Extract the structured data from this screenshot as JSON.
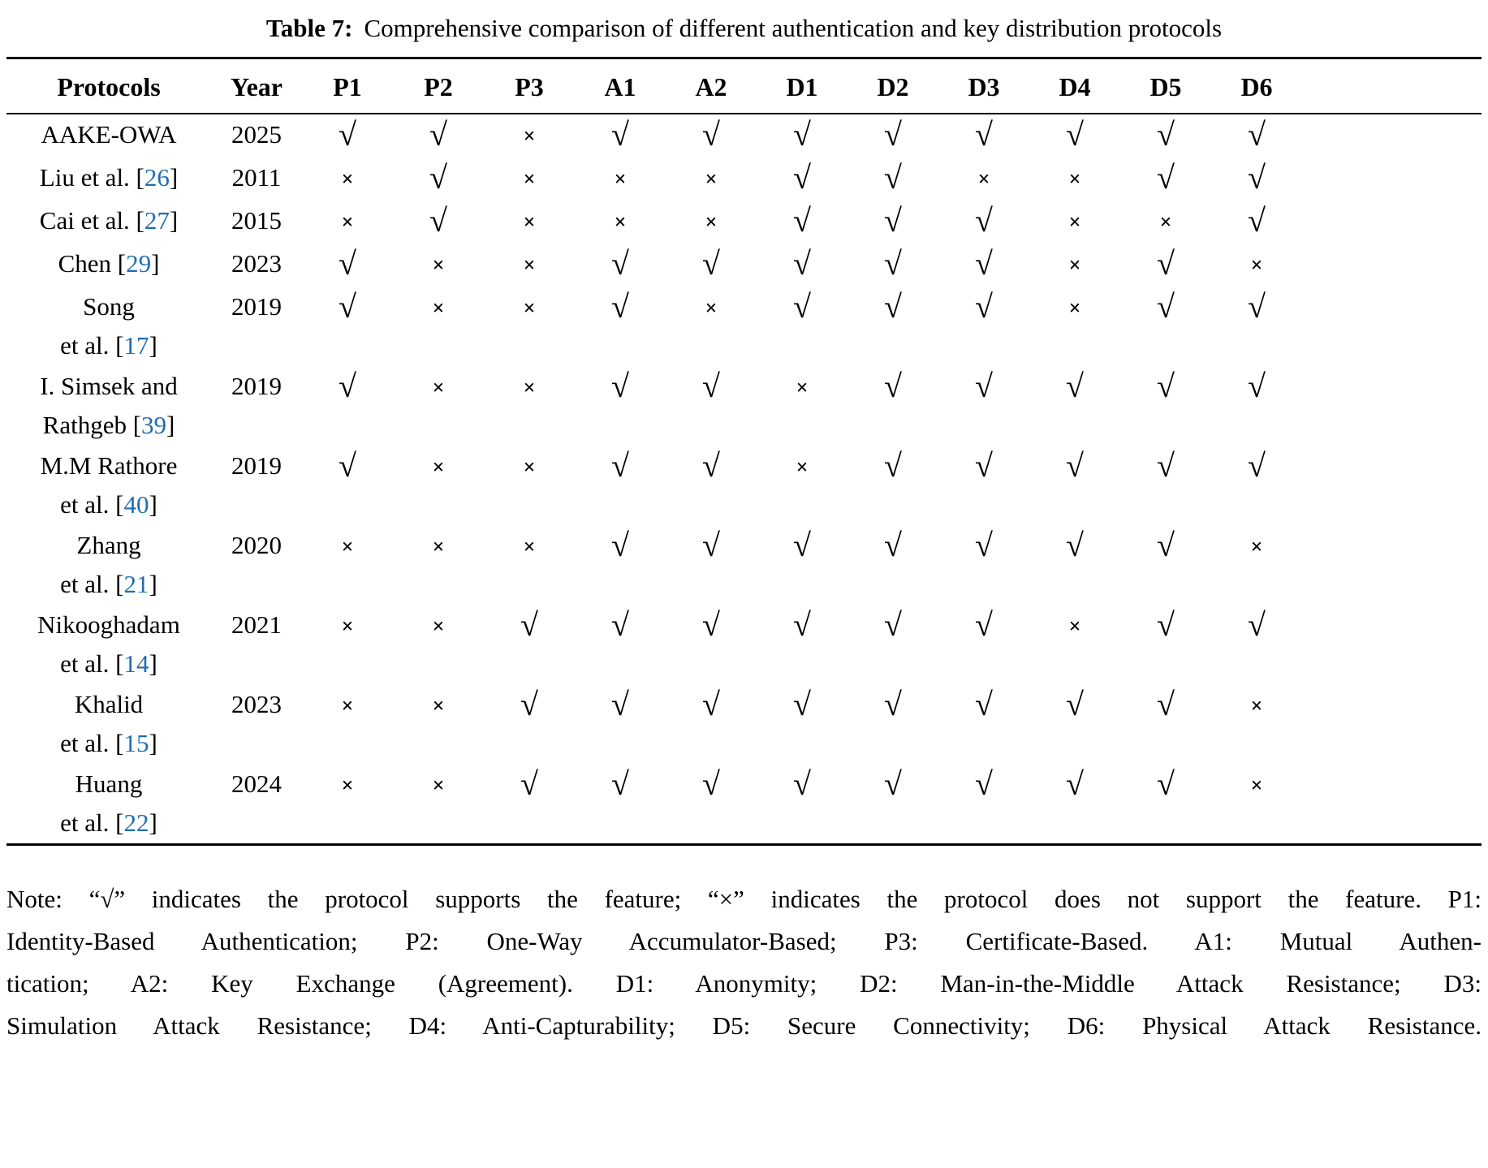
{
  "colors": {
    "background": "#ffffff",
    "text": "#000000",
    "rule": "#000000",
    "citation": "#1f6cb0"
  },
  "caption": {
    "label": "Table 7:",
    "text": "Comprehensive comparison of different authentication and key distribution protocols"
  },
  "table": {
    "columns": [
      "Protocols",
      "Year",
      "P1",
      "P2",
      "P3",
      "A1",
      "A2",
      "D1",
      "D2",
      "D3",
      "D4",
      "D5",
      "D6"
    ],
    "check_symbol": "√",
    "cross_symbol": "×",
    "rows": [
      {
        "protocol_lines": [
          [
            {
              "text": "AAKE-OWA",
              "cite": false
            }
          ]
        ],
        "year": "2025",
        "marks": [
          "check",
          "check",
          "cross",
          "check",
          "check",
          "check",
          "check",
          "check",
          "check",
          "check",
          "check"
        ]
      },
      {
        "protocol_lines": [
          [
            {
              "text": "Liu et al. [",
              "cite": false
            },
            {
              "text": "26",
              "cite": true
            },
            {
              "text": "]",
              "cite": false
            }
          ]
        ],
        "year": "2011",
        "marks": [
          "cross",
          "check",
          "cross",
          "cross",
          "cross",
          "check",
          "check",
          "cross",
          "cross",
          "check",
          "check"
        ]
      },
      {
        "protocol_lines": [
          [
            {
              "text": "Cai et al. [",
              "cite": false
            },
            {
              "text": "27",
              "cite": true
            },
            {
              "text": "]",
              "cite": false
            }
          ]
        ],
        "year": "2015",
        "marks": [
          "cross",
          "check",
          "cross",
          "cross",
          "cross",
          "check",
          "check",
          "check",
          "cross",
          "cross",
          "check"
        ]
      },
      {
        "protocol_lines": [
          [
            {
              "text": "Chen [",
              "cite": false
            },
            {
              "text": "29",
              "cite": true
            },
            {
              "text": "]",
              "cite": false
            }
          ]
        ],
        "year": "2023",
        "marks": [
          "check",
          "cross",
          "cross",
          "check",
          "check",
          "check",
          "check",
          "check",
          "cross",
          "check",
          "cross"
        ]
      },
      {
        "protocol_lines": [
          [
            {
              "text": "Song",
              "cite": false
            }
          ],
          [
            {
              "text": "et al. [",
              "cite": false
            },
            {
              "text": "17",
              "cite": true
            },
            {
              "text": "]",
              "cite": false
            }
          ]
        ],
        "year": "2019",
        "marks": [
          "check",
          "cross",
          "cross",
          "check",
          "cross",
          "check",
          "check",
          "check",
          "cross",
          "check",
          "check"
        ]
      },
      {
        "protocol_lines": [
          [
            {
              "text": "I. Simsek and",
              "cite": false
            }
          ],
          [
            {
              "text": "Rathgeb [",
              "cite": false
            },
            {
              "text": "39",
              "cite": true
            },
            {
              "text": "]",
              "cite": false
            }
          ]
        ],
        "year": "2019",
        "marks": [
          "check",
          "cross",
          "cross",
          "check",
          "check",
          "cross",
          "check",
          "check",
          "check",
          "check",
          "check"
        ]
      },
      {
        "protocol_lines": [
          [
            {
              "text": "M.M Rathore",
              "cite": false
            }
          ],
          [
            {
              "text": "et al. [",
              "cite": false
            },
            {
              "text": "40",
              "cite": true
            },
            {
              "text": "]",
              "cite": false
            }
          ]
        ],
        "year": "2019",
        "marks": [
          "check",
          "cross",
          "cross",
          "check",
          "check",
          "cross",
          "check",
          "check",
          "check",
          "check",
          "check"
        ]
      },
      {
        "protocol_lines": [
          [
            {
              "text": "Zhang",
              "cite": false
            }
          ],
          [
            {
              "text": "et al. [",
              "cite": false
            },
            {
              "text": "21",
              "cite": true
            },
            {
              "text": "]",
              "cite": false
            }
          ]
        ],
        "year": "2020",
        "marks": [
          "cross",
          "cross",
          "cross",
          "check",
          "check",
          "check",
          "check",
          "check",
          "check",
          "check",
          "cross"
        ]
      },
      {
        "protocol_lines": [
          [
            {
              "text": "Nikooghadam",
              "cite": false
            }
          ],
          [
            {
              "text": "et al. [",
              "cite": false
            },
            {
              "text": "14",
              "cite": true
            },
            {
              "text": "]",
              "cite": false
            }
          ]
        ],
        "year": "2021",
        "marks": [
          "cross",
          "cross",
          "check",
          "check",
          "check",
          "check",
          "check",
          "check",
          "cross",
          "check",
          "check"
        ]
      },
      {
        "protocol_lines": [
          [
            {
              "text": "Khalid",
              "cite": false
            }
          ],
          [
            {
              "text": "et al. [",
              "cite": false
            },
            {
              "text": "15",
              "cite": true
            },
            {
              "text": "]",
              "cite": false
            }
          ]
        ],
        "year": "2023",
        "marks": [
          "cross",
          "cross",
          "check",
          "check",
          "check",
          "check",
          "check",
          "check",
          "check",
          "check",
          "cross"
        ]
      },
      {
        "protocol_lines": [
          [
            {
              "text": "Huang",
              "cite": false
            }
          ],
          [
            {
              "text": "et al. [",
              "cite": false
            },
            {
              "text": "22",
              "cite": true
            },
            {
              "text": "]",
              "cite": false
            }
          ]
        ],
        "year": "2024",
        "marks": [
          "cross",
          "cross",
          "check",
          "check",
          "check",
          "check",
          "check",
          "check",
          "check",
          "check",
          "cross"
        ]
      }
    ]
  },
  "note": {
    "lines": [
      "Note: “√” indicates the protocol supports the feature; “×” indicates the protocol does not support the feature. P1:",
      "Identity-Based Authentication; P2: One-Way Accumulator-Based; P3: Certificate-Based. A1: Mutual Authen-",
      "tication; A2: Key Exchange (Agreement). D1: Anonymity; D2: Man-in-the-Middle Attack Resistance; D3:",
      "Simulation Attack Resistance; D4: Anti-Capturability; D5: Secure Connectivity; D6: Physical Attack Resistance."
    ]
  }
}
